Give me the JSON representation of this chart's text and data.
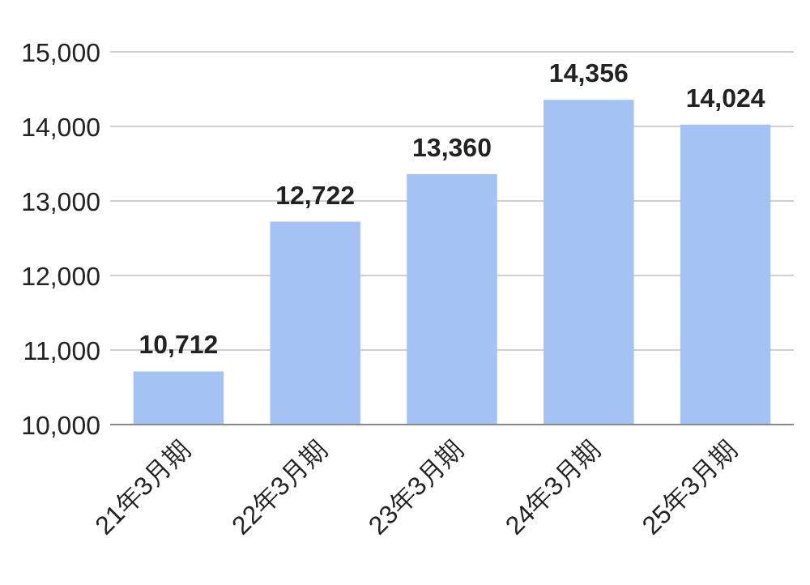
{
  "chart_data": {
    "type": "bar",
    "categories": [
      "21年3月期",
      "22年3月期",
      "23年3月期",
      "24年3月期",
      "25年3月期"
    ],
    "values": [
      10712,
      12722,
      13360,
      14356,
      14024
    ],
    "color": "#a4c2f4",
    "ylim": [
      10000,
      15000
    ],
    "yticks": [
      {
        "value": 10000,
        "label": "10,000"
      },
      {
        "value": 11000,
        "label": "11,000"
      },
      {
        "value": 12000,
        "label": "12,000"
      },
      {
        "value": 13000,
        "label": "13,000"
      },
      {
        "value": 14000,
        "label": "14,000"
      },
      {
        "value": 15000,
        "label": "15,000"
      }
    ],
    "grid": "y",
    "value_labels": [
      "10,712",
      "12,722",
      "13,360",
      "14,356",
      "14,024"
    ]
  }
}
